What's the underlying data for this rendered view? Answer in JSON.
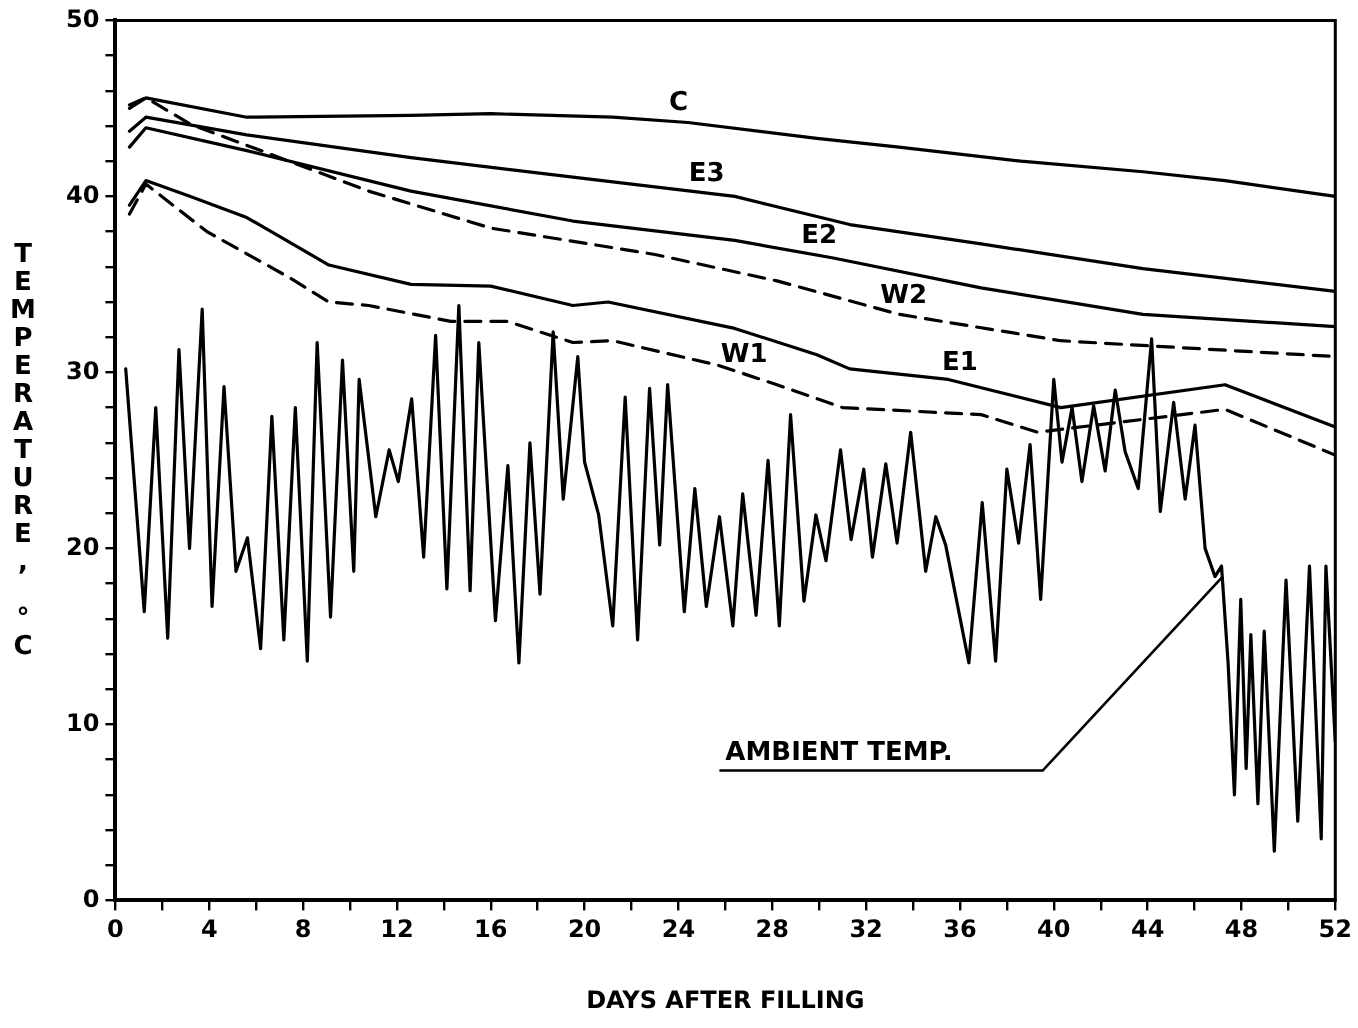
{
  "chart_data": {
    "type": "line",
    "xlabel": "DAYS AFTER FILLING",
    "ylabel": "TEMPERATURE, °C",
    "xlim": [
      0,
      52
    ],
    "ylim": [
      0,
      50
    ],
    "xticks": [
      0,
      {
        "value": 2,
        "label": null
      },
      4,
      {
        "value": 6,
        "label": null
      },
      8,
      {
        "value": 10,
        "label": null
      },
      12,
      {
        "value": 14,
        "label": null
      },
      16,
      {
        "value": 18,
        "label": null
      },
      20,
      {
        "value": 22,
        "label": null
      },
      24,
      {
        "value": 26,
        "label": null
      },
      28,
      {
        "value": 30,
        "label": null
      },
      32,
      {
        "value": 34,
        "label": null
      },
      36,
      {
        "value": 38,
        "label": null
      },
      40,
      {
        "value": 42,
        "label": null
      },
      44,
      {
        "value": 46,
        "label": null
      },
      48,
      {
        "value": 50,
        "label": null
      },
      52
    ],
    "yticks": [
      0,
      {
        "value": 2,
        "label": null
      },
      {
        "value": 4,
        "label": null
      },
      {
        "value": 6,
        "label": null
      },
      {
        "value": 8,
        "label": null
      },
      10,
      {
        "value": 12,
        "label": null
      },
      {
        "value": 14,
        "label": null
      },
      {
        "value": 16,
        "label": null
      },
      {
        "value": 18,
        "label": null
      },
      20,
      {
        "value": 22,
        "label": null
      },
      {
        "value": 24,
        "label": null
      },
      {
        "value": 26,
        "label": null
      },
      {
        "value": 28,
        "label": null
      },
      30,
      {
        "value": 32,
        "label": null
      },
      {
        "value": 34,
        "label": null
      },
      {
        "value": 36,
        "label": null
      },
      {
        "value": 38,
        "label": null
      },
      40,
      {
        "value": 42,
        "label": null
      },
      {
        "value": 44,
        "label": null
      },
      {
        "value": 46,
        "label": null
      },
      {
        "value": 48,
        "label": null
      },
      50
    ],
    "grid": false,
    "legend": false,
    "marker": "none",
    "line_style": "solid",
    "annotations": [
      {
        "text": "AMBIENT TEMP.",
        "x": 47.2,
        "y": 18.4
      }
    ],
    "series": [
      {
        "name": "C",
        "color": "#000000",
        "x": [
          0.6,
          1.3,
          5.6,
          12.6,
          16,
          21.2,
          24.4,
          29.9,
          33.4,
          38.6,
          43.8,
          47.3,
          52
        ],
        "values": [
          45.0,
          45.6,
          44.5,
          44.6,
          44.7,
          44.5,
          44.2,
          43.3,
          42.8,
          42.0,
          41.4,
          40.9,
          40.0
        ]
      },
      {
        "name": "E3",
        "color": "#000000",
        "x": [
          0.6,
          1.3,
          5.6,
          12.6,
          19.5,
          26.4,
          31.3,
          36.9,
          43.8,
          52
        ],
        "values": [
          43.7,
          44.5,
          43.5,
          42.2,
          41.1,
          40.0,
          38.4,
          37.3,
          35.9,
          34.6
        ]
      },
      {
        "name": "E2",
        "color": "#000000",
        "x": [
          0.6,
          1.3,
          5.6,
          12.6,
          19.5,
          26.4,
          30.6,
          36.9,
          43.8,
          52
        ],
        "values": [
          42.8,
          43.9,
          42.6,
          40.3,
          38.6,
          37.5,
          36.5,
          34.8,
          33.3,
          32.6
        ]
      },
      {
        "name": "W2",
        "color": "#000000",
        "line_style": "dashed",
        "x": [
          0.6,
          1.3,
          3.2,
          7.4,
          10.8,
          16,
          23,
          28.2,
          33.4,
          40.3,
          52
        ],
        "values": [
          45.2,
          45.6,
          44.1,
          42.0,
          40.3,
          38.2,
          36.7,
          35.2,
          33.3,
          31.8,
          30.9
        ]
      },
      {
        "name": "E1",
        "color": "#000000",
        "x": [
          0.6,
          1.3,
          3.2,
          5.6,
          9.1,
          12.6,
          16,
          19.5,
          21,
          26.4,
          29.9,
          31.3,
          35.5,
          40.3,
          47.3,
          52
        ],
        "values": [
          39.5,
          40.9,
          40.0,
          38.8,
          36.1,
          35.0,
          34.9,
          33.8,
          34.0,
          32.5,
          31.0,
          30.2,
          29.6,
          28.0,
          29.3,
          26.9
        ]
      },
      {
        "name": "W1",
        "color": "#000000",
        "line_style": "dashed",
        "x": [
          0.6,
          1.3,
          3.9,
          7.4,
          9.1,
          10.8,
          14.3,
          16.7,
          19.5,
          21.2,
          25.7,
          28.2,
          31,
          36.9,
          39.3,
          47.3,
          52
        ],
        "values": [
          39.0,
          40.7,
          38.0,
          35.4,
          34.0,
          33.8,
          32.9,
          32.9,
          31.7,
          31.8,
          30.4,
          29.3,
          28.0,
          27.6,
          26.6,
          27.9,
          25.3
        ]
      },
      {
        "color": "#000000",
        "x": [
          0.44,
          1.23,
          1.72,
          2.23,
          2.71,
          3.16,
          3.7,
          4.12,
          4.63,
          5.14,
          5.63,
          6.19,
          6.67,
          7.18,
          7.67,
          8.18,
          8.6,
          9.17,
          9.68,
          10.16,
          10.39,
          11.1,
          11.67,
          12.06,
          12.63,
          13.14,
          13.65,
          14.13,
          14.64,
          15.12,
          15.49,
          16.2,
          16.73,
          17.2,
          17.67,
          18.1,
          18.66,
          19.09,
          19.71,
          20.0,
          20.6,
          21.2,
          21.73,
          22.26,
          22.77,
          23.2,
          23.54,
          24.25,
          24.7,
          25.19,
          25.75,
          26.32,
          26.74,
          27.31,
          27.82,
          28.3,
          28.78,
          29.35,
          29.86,
          30.29,
          30.91,
          31.36,
          31.9,
          32.27,
          32.84,
          33.32,
          33.9,
          34.54,
          34.97,
          35.39,
          36.38,
          36.95,
          37.52,
          38.0,
          38.5,
          38.99,
          39.44,
          40.0,
          40.35,
          40.78,
          41.2,
          41.7,
          42.19,
          42.62,
          43.04,
          43.6,
          44.17,
          44.54,
          45.11,
          45.6,
          46.02,
          46.45,
          46.87,
          47.15,
          47.43,
          47.7,
          47.97,
          48.2,
          48.4,
          48.7,
          48.97,
          49.4,
          49.9,
          50.4,
          50.9,
          51.4,
          51.6,
          52
        ],
        "values": [
          30.2,
          16.4,
          28.0,
          14.9,
          31.3,
          20.0,
          33.6,
          16.7,
          29.2,
          18.7,
          20.6,
          14.3,
          27.5,
          14.8,
          28.0,
          13.6,
          31.7,
          16.1,
          30.7,
          18.7,
          29.6,
          21.8,
          25.6,
          23.8,
          28.5,
          19.5,
          32.1,
          17.7,
          33.8,
          17.6,
          31.7,
          15.9,
          24.7,
          13.5,
          26.0,
          17.4,
          32.3,
          22.8,
          30.9,
          24.9,
          21.9,
          15.6,
          28.6,
          14.8,
          29.1,
          20.2,
          29.3,
          16.4,
          23.4,
          16.7,
          21.8,
          15.6,
          23.1,
          16.2,
          25.0,
          15.6,
          27.6,
          17.0,
          21.9,
          19.3,
          25.6,
          20.5,
          24.5,
          19.5,
          24.8,
          20.3,
          26.6,
          18.7,
          21.8,
          20.2,
          13.5,
          22.6,
          13.6,
          24.5,
          20.3,
          25.9,
          17.1,
          29.6,
          24.9,
          28.0,
          23.8,
          28.1,
          24.4,
          29.0,
          25.5,
          23.4,
          31.9,
          22.1,
          28.3,
          22.8,
          27.0,
          20.0,
          18.4,
          19.0,
          13.5,
          6.0,
          17.1,
          7.5,
          15.1,
          5.5,
          15.3,
          2.8,
          18.2,
          4.5,
          19.0,
          3.5,
          19.0,
          9.0
        ]
      }
    ]
  }
}
